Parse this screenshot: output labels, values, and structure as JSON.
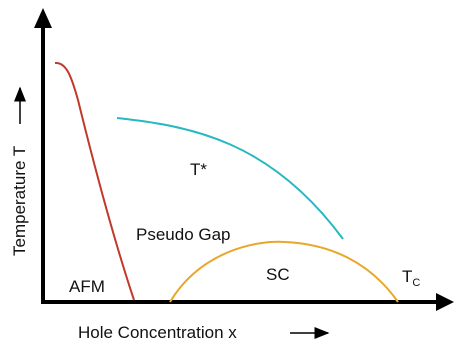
{
  "axes": {
    "x_label": "Hole Concentration x",
    "y_label": "Temperature T",
    "axis_color": "#000000"
  },
  "curves": [
    {
      "name": "AFM boundary",
      "color": "#c0392b"
    },
    {
      "name": "T* line",
      "color": "#26b8c2"
    },
    {
      "name": "SC dome",
      "color": "#e8a72a"
    }
  ],
  "region_labels": {
    "afm": "AFM",
    "tstar": "T*",
    "pseudo_gap": "Pseudo Gap",
    "sc": "SC",
    "tc_main": "T",
    "tc_sub": "C"
  }
}
